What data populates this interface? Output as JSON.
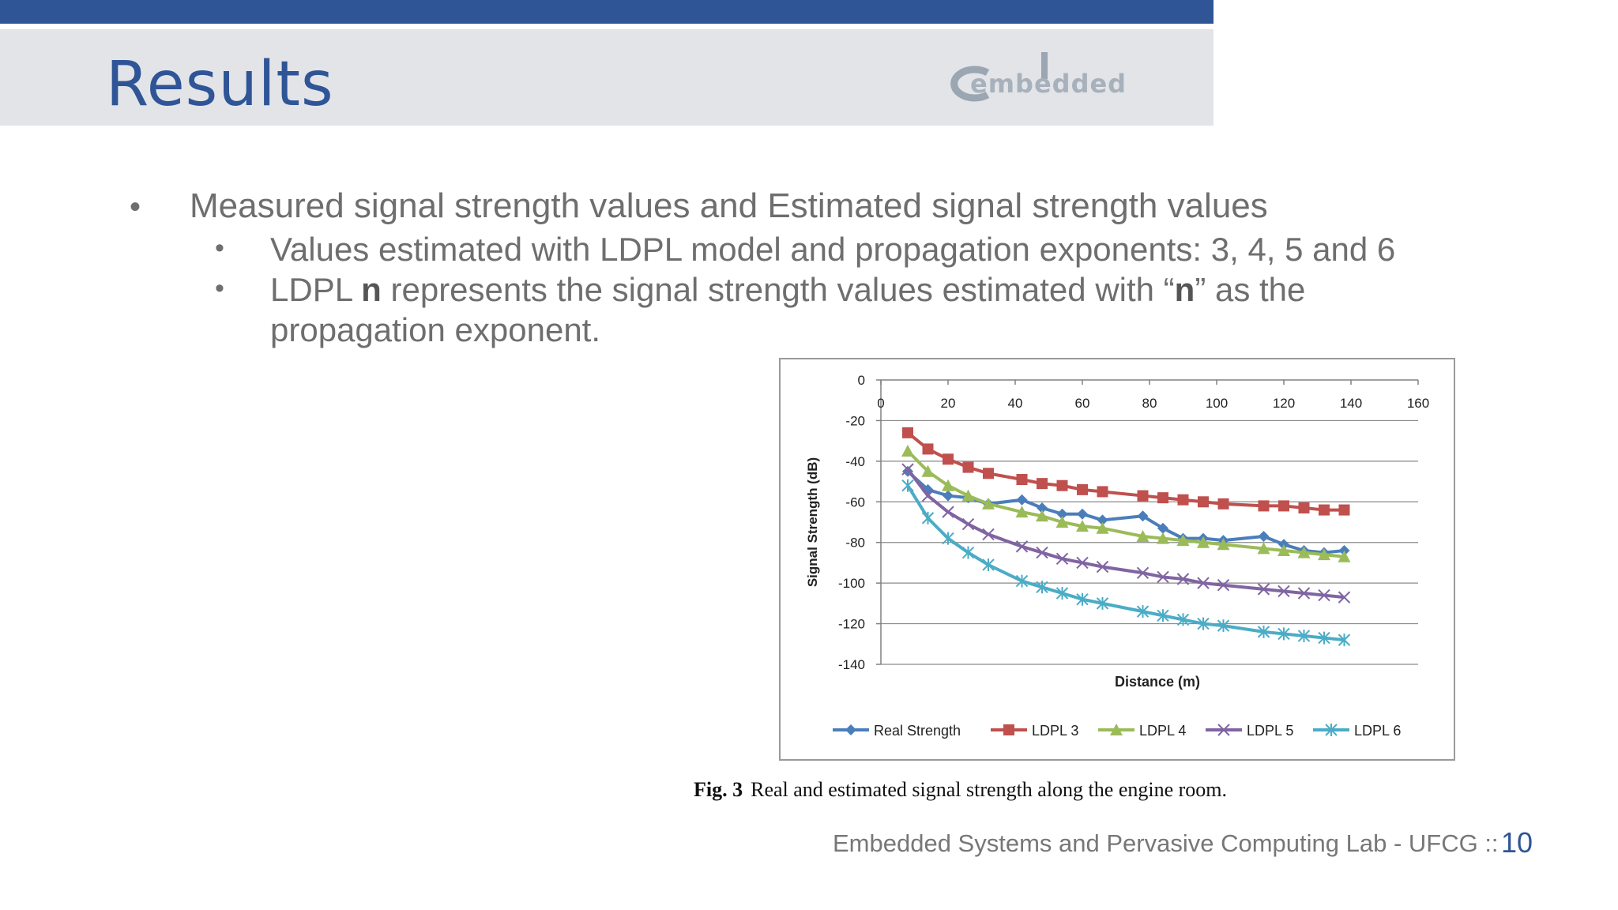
{
  "slide": {
    "title": "Results",
    "logo_text": "embedded",
    "bullets": {
      "main": "Measured signal strength values and Estimated signal strength values",
      "sub1": "Values estimated with LDPL model and propagation exponents: 3, 4, 5 and 6",
      "sub2_prefix": "LDPL ",
      "sub2_bold1": "n",
      "sub2_mid": " represents the signal strength values estimated with “",
      "sub2_bold2": "n",
      "sub2_suffix": "” as the",
      "sub2_line2": "propagation exponent."
    },
    "caption_label": "Fig. 3",
    "caption_text": "Real and estimated signal strength along the engine room.",
    "footer_text": "Embedded Systems and Pervasive Computing Lab - UFCG  ::",
    "page_number": "10",
    "colors": {
      "accent": "#2f5597",
      "band": "#e3e4e8"
    }
  },
  "chart_data": {
    "type": "line",
    "xlabel": "Distance (m)",
    "ylabel": "Signal Strength (dB)",
    "xlim": [
      0,
      160
    ],
    "ylim": [
      -140,
      0
    ],
    "xticks": [
      0,
      20,
      40,
      60,
      80,
      100,
      120,
      140,
      160
    ],
    "yticks": [
      0,
      -20,
      -40,
      -60,
      -80,
      -100,
      -120,
      -140
    ],
    "x_axis_position": "top",
    "grid": "horizontal",
    "legend_position": "bottom",
    "x": [
      8,
      14,
      20,
      26,
      32,
      42,
      48,
      54,
      60,
      66,
      78,
      84,
      90,
      96,
      102,
      114,
      120,
      126,
      132,
      138
    ],
    "series": [
      {
        "name": "Real Strength",
        "color": "#4a7ebb",
        "marker": "diamond",
        "values": [
          -45,
          -54,
          -57,
          -58,
          -61,
          -59,
          -63,
          -66,
          -66,
          -69,
          -67,
          -73,
          -78,
          -78,
          -79,
          -77,
          -81,
          -84,
          -85,
          -84
        ]
      },
      {
        "name": "LDPL 3",
        "color": "#c0504d",
        "marker": "square",
        "values": [
          -26,
          -34,
          -39,
          -43,
          -46,
          -49,
          -51,
          -52,
          -54,
          -55,
          -57,
          -58,
          -59,
          -60,
          -61,
          -62,
          -62,
          -63,
          -64,
          -64
        ]
      },
      {
        "name": "LDPL 4",
        "color": "#9bbb59",
        "marker": "triangle",
        "values": [
          -35,
          -45,
          -52,
          -57,
          -61,
          -65,
          -67,
          -70,
          -72,
          -73,
          -77,
          -78,
          -79,
          -80,
          -81,
          -83,
          -84,
          -85,
          -86,
          -87
        ]
      },
      {
        "name": "LDPL 5",
        "color": "#8064a2",
        "marker": "x",
        "values": [
          -44,
          -57,
          -65,
          -71,
          -76,
          -82,
          -85,
          -88,
          -90,
          -92,
          -95,
          -97,
          -98,
          -100,
          -101,
          -103,
          -104,
          -105,
          -106,
          -107
        ]
      },
      {
        "name": "LDPL 6",
        "color": "#4bacc6",
        "marker": "star",
        "values": [
          -52,
          -68,
          -78,
          -85,
          -91,
          -99,
          -102,
          -105,
          -108,
          -110,
          -114,
          -116,
          -118,
          -120,
          -121,
          -124,
          -125,
          -126,
          -127,
          -128
        ]
      }
    ]
  }
}
